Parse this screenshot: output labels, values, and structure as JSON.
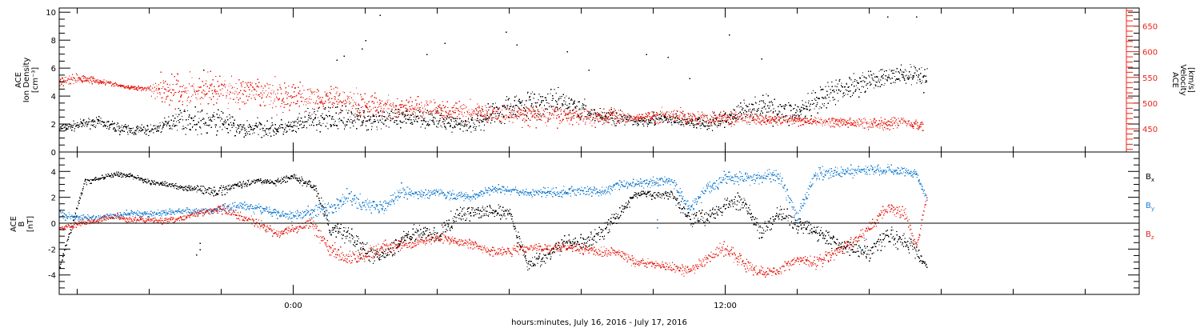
{
  "figure": {
    "xlabel": "hours:minutes, July 16, 2016 - July 17, 2016",
    "time_tick_labels": [
      {
        "hour": 0,
        "label": "0:00"
      },
      {
        "hour": 12,
        "label": "12:00"
      }
    ],
    "time_range_hours": [
      -6.5,
      23.5
    ]
  },
  "colors": {
    "black": "#000000",
    "red": "#e8241a",
    "blue": "#1b7fd1"
  },
  "chart_data": [
    {
      "type": "scatter",
      "panel": "top",
      "left_axis": {
        "label_lines": [
          "ACE",
          "Ion Density",
          "[cm⁻³]"
        ],
        "ylim": [
          0,
          10.3
        ],
        "ticks": [
          0,
          2,
          4,
          6,
          8,
          10
        ]
      },
      "right_axis": {
        "label_lines": [
          "ACE",
          "Velocity",
          "[km/s]"
        ],
        "ylim": [
          405,
          685
        ],
        "ticks": [
          450,
          500,
          550,
          600,
          650
        ]
      },
      "series": [
        {
          "key": "density",
          "axis": "left",
          "color": "#000000",
          "x": [
            -6.5,
            -5.5,
            -4.6,
            -4.0,
            -3.6,
            -3.2,
            -2.5,
            -2.0,
            -1.5,
            -1.0,
            -0.5,
            0.0,
            0.5,
            1.0,
            1.5,
            2.0,
            2.5,
            3.0,
            3.5,
            4.0,
            4.5,
            5.0,
            5.5,
            6.0,
            6.5,
            7.0,
            7.5,
            8.0,
            8.5,
            9.0,
            9.5,
            10.0,
            10.5,
            11.0,
            11.5,
            12.0,
            12.5,
            13.0,
            13.5,
            14.0,
            14.5,
            15.0,
            15.5,
            16.0,
            16.4,
            16.8,
            17.2,
            17.6
          ],
          "y": [
            1.7,
            2.2,
            1.6,
            1.6,
            1.9,
            2.5,
            2.1,
            2.3,
            1.6,
            1.8,
            1.7,
            1.8,
            2.4,
            2.3,
            2.6,
            2.3,
            2.5,
            2.3,
            2.6,
            2.3,
            2.1,
            2.0,
            2.8,
            3.2,
            3.5,
            3.3,
            3.6,
            3.0,
            2.6,
            2.5,
            2.2,
            2.4,
            2.3,
            2.2,
            2.0,
            2.4,
            3.0,
            3.3,
            2.9,
            2.9,
            3.4,
            4.3,
            4.8,
            5.2,
            5.3,
            5.6,
            5.5,
            5.4
          ],
          "jitter": [
            0.25,
            0.3,
            0.35,
            0.3,
            0.4,
            0.7,
            0.8,
            0.7,
            0.6,
            0.5,
            0.5,
            0.5,
            0.7,
            0.9,
            0.7,
            0.6,
            0.7,
            0.6,
            0.6,
            0.6,
            0.5,
            0.5,
            0.8,
            0.9,
            0.8,
            0.9,
            0.7,
            0.6,
            0.5,
            0.5,
            0.3,
            0.4,
            0.4,
            0.4,
            0.4,
            0.5,
            0.7,
            0.8,
            0.7,
            0.8,
            0.8,
            0.8,
            0.7,
            0.6,
            0.6,
            0.6,
            0.6,
            0.6
          ],
          "outliers": [
            [
              1.2,
              6.6
            ],
            [
              1.4,
              6.9
            ],
            [
              1.9,
              7.4
            ],
            [
              2.0,
              8.0
            ],
            [
              2.4,
              9.8
            ],
            [
              3.7,
              7.0
            ],
            [
              4.2,
              7.8
            ],
            [
              5.9,
              8.6
            ],
            [
              6.2,
              7.7
            ],
            [
              7.6,
              7.2
            ],
            [
              8.2,
              5.9
            ],
            [
              9.8,
              7.0
            ],
            [
              10.4,
              6.8
            ],
            [
              11.0,
              5.3
            ],
            [
              12.1,
              8.4
            ],
            [
              13.0,
              6.7
            ],
            [
              16.5,
              9.7
            ],
            [
              17.3,
              9.7
            ],
            [
              17.5,
              4.3
            ],
            [
              -2.5,
              5.9
            ]
          ]
        },
        {
          "key": "velocity",
          "axis": "right",
          "color": "#e8241a",
          "x": [
            -6.5,
            -5.8,
            -5.2,
            -4.6,
            -4.1,
            -3.6,
            -3.0,
            -2.5,
            -2.0,
            -1.5,
            -1.0,
            -0.5,
            0.0,
            0.5,
            1.0,
            1.5,
            2.0,
            2.5,
            3.0,
            3.5,
            4.0,
            4.5,
            5.0,
            5.5,
            6.0,
            6.5,
            7.0,
            7.5,
            8.0,
            8.5,
            9.0,
            9.5,
            10.0,
            10.5,
            11.0,
            11.5,
            12.0,
            12.5,
            13.0,
            13.5,
            14.0,
            14.5,
            15.0,
            15.5,
            16.0,
            16.5,
            17.0,
            17.5
          ],
          "y": [
            545,
            549,
            541,
            531,
            530,
            528,
            523,
            527,
            526,
            521,
            519,
            514,
            513,
            512,
            513,
            505,
            496,
            494,
            491,
            491,
            488,
            485,
            484,
            481,
            478,
            478,
            477,
            476,
            477,
            475,
            474,
            472,
            476,
            476,
            474,
            473,
            472,
            474,
            471,
            468,
            466,
            465,
            464,
            462,
            462,
            462,
            466,
            454
          ],
          "jitter": [
            12,
            6,
            4,
            3,
            4,
            28,
            28,
            28,
            28,
            26,
            24,
            26,
            24,
            24,
            22,
            22,
            22,
            18,
            16,
            18,
            16,
            16,
            16,
            14,
            14,
            16,
            16,
            16,
            16,
            15,
            14,
            4,
            12,
            12,
            12,
            12,
            12,
            10,
            10,
            8,
            8,
            7,
            8,
            8,
            10,
            10,
            8,
            10
          ],
          "outliers": []
        }
      ]
    },
    {
      "type": "scatter",
      "panel": "bottom",
      "left_axis": {
        "label_lines": [
          "ACE",
          "B",
          "[nT]"
        ],
        "ylim": [
          -5.5,
          5.5
        ],
        "ticks": [
          -4,
          -2,
          0,
          2,
          4
        ]
      },
      "zero_line": true,
      "series": [
        {
          "key": "bx",
          "name": "Bx",
          "color": "#000000",
          "x": [
            -6.5,
            -5.8,
            -5.0,
            -4.5,
            -4.0,
            -3.5,
            -2.8,
            -2.2,
            -1.6,
            -1.0,
            -0.5,
            0.0,
            0.6,
            1.0,
            1.5,
            2.0,
            2.5,
            3.0,
            3.5,
            4.0,
            4.5,
            5.0,
            5.5,
            6.0,
            6.5,
            7.0,
            7.5,
            8.0,
            8.5,
            9.0,
            9.5,
            10.0,
            10.5,
            11.0,
            11.5,
            12.0,
            12.5,
            13.0,
            13.5,
            14.0,
            14.5,
            15.0,
            15.5,
            16.0,
            16.5,
            17.0,
            17.3,
            17.6
          ],
          "y": [
            -3.4,
            3.2,
            3.8,
            3.7,
            3.2,
            3.0,
            2.7,
            2.4,
            3.0,
            3.3,
            3.2,
            3.6,
            2.8,
            -0.4,
            -0.8,
            -2.2,
            -2.6,
            -1.3,
            -0.5,
            -1.1,
            0.6,
            0.9,
            0.9,
            0.8,
            -3.2,
            -2.5,
            -1.6,
            -1.5,
            -0.9,
            0.6,
            2.3,
            2.2,
            2.3,
            0.5,
            0.5,
            1.5,
            1.6,
            -0.7,
            0.8,
            -0.1,
            -0.4,
            -1.4,
            -1.9,
            -2.2,
            -0.9,
            -1.4,
            -2.1,
            -3.5
          ],
          "jitter": [
            0.3,
            0.2,
            0.15,
            0.15,
            0.15,
            0.15,
            0.2,
            0.4,
            0.2,
            0.2,
            0.2,
            0.2,
            0.3,
            0.5,
            0.6,
            0.6,
            0.5,
            0.5,
            0.5,
            0.5,
            0.5,
            0.5,
            0.4,
            0.4,
            0.4,
            0.5,
            0.5,
            0.5,
            0.5,
            0.4,
            0.3,
            0.3,
            0.3,
            0.5,
            0.5,
            0.5,
            0.5,
            0.6,
            0.6,
            0.6,
            0.6,
            0.6,
            0.5,
            0.5,
            0.6,
            0.6,
            0.5,
            0.3
          ],
          "outliers": [
            [
              -2.7,
              -2.4
            ],
            [
              -2.6,
              -2.0
            ],
            [
              -2.6,
              -1.5
            ]
          ]
        },
        {
          "key": "by",
          "name": "By",
          "color": "#1b7fd1",
          "x": [
            -6.5,
            -6.0,
            -5.5,
            -5.0,
            -4.5,
            -4.0,
            -3.5,
            -3.0,
            -2.5,
            -2.0,
            -1.5,
            -1.0,
            -0.5,
            0.0,
            0.5,
            1.0,
            1.5,
            2.0,
            2.5,
            3.0,
            3.5,
            4.0,
            4.5,
            5.0,
            5.5,
            6.0,
            6.5,
            7.0,
            7.5,
            8.0,
            8.5,
            9.0,
            9.5,
            10.0,
            10.5,
            11.0,
            11.5,
            12.0,
            12.5,
            13.0,
            13.5,
            14.0,
            14.5,
            15.0,
            15.5,
            16.0,
            16.5,
            17.0,
            17.3,
            17.6
          ],
          "y": [
            0.7,
            0.5,
            0.4,
            0.6,
            0.8,
            0.7,
            0.9,
            1.0,
            0.9,
            1.2,
            1.4,
            1.2,
            0.8,
            0.6,
            0.9,
            1.2,
            2.1,
            1.5,
            1.3,
            2.6,
            2.2,
            2.5,
            2.1,
            2.1,
            2.7,
            2.6,
            2.3,
            2.4,
            2.4,
            2.6,
            2.4,
            3.0,
            3.1,
            3.2,
            3.4,
            1.1,
            2.8,
            3.5,
            3.5,
            3.6,
            3.7,
            0.4,
            3.9,
            3.9,
            4.0,
            4.1,
            4.2,
            4.0,
            3.9,
            1.8
          ],
          "jitter": [
            0.3,
            0.2,
            0.2,
            0.2,
            0.2,
            0.2,
            0.2,
            0.2,
            0.2,
            0.3,
            0.3,
            0.3,
            0.3,
            0.3,
            0.4,
            0.5,
            0.5,
            0.5,
            0.4,
            0.4,
            0.3,
            0.3,
            0.3,
            0.3,
            0.3,
            0.3,
            0.3,
            0.3,
            0.3,
            0.3,
            0.3,
            0.3,
            0.3,
            0.3,
            0.3,
            0.4,
            0.4,
            0.4,
            0.4,
            0.4,
            0.5,
            0.5,
            0.4,
            0.4,
            0.4,
            0.4,
            0.3,
            0.3,
            0.3,
            0.4
          ],
          "outliers": [
            [
              10.1,
              -0.3
            ],
            [
              10.1,
              0.3
            ],
            [
              15.8,
              -2.0
            ],
            [
              15.9,
              -1.2
            ]
          ]
        },
        {
          "key": "bz",
          "name": "Bz",
          "color": "#e8241a",
          "x": [
            -6.5,
            -6.0,
            -5.5,
            -5.0,
            -4.5,
            -4.0,
            -3.5,
            -3.0,
            -2.5,
            -2.0,
            -1.5,
            -1.0,
            -0.5,
            0.0,
            0.5,
            1.0,
            1.5,
            2.0,
            2.5,
            3.0,
            3.5,
            4.0,
            4.5,
            5.0,
            5.5,
            6.0,
            6.5,
            7.0,
            7.5,
            8.0,
            8.5,
            9.0,
            9.5,
            10.0,
            10.5,
            11.0,
            11.5,
            12.0,
            12.5,
            13.0,
            13.5,
            14.0,
            14.5,
            15.0,
            15.5,
            16.0,
            16.5,
            17.0,
            17.3,
            17.6
          ],
          "y": [
            -0.4,
            0.0,
            0.2,
            0.6,
            0.3,
            0.3,
            0.2,
            0.5,
            0.9,
            1.1,
            0.6,
            0.0,
            -0.7,
            -0.5,
            0.1,
            -1.9,
            -2.7,
            -2.4,
            -1.8,
            -1.7,
            -1.4,
            -1.1,
            -1.3,
            -1.6,
            -2.2,
            -2.1,
            -1.8,
            -1.9,
            -1.8,
            -2.0,
            -2.2,
            -2.2,
            -3.0,
            -3.1,
            -3.4,
            -3.7,
            -2.7,
            -1.8,
            -3.1,
            -3.8,
            -3.5,
            -2.8,
            -3.0,
            -2.3,
            -1.6,
            -0.4,
            1.3,
            0.7,
            -1.7,
            2.2
          ],
          "jitter": [
            0.2,
            0.2,
            0.2,
            0.2,
            0.2,
            0.2,
            0.2,
            0.2,
            0.2,
            0.3,
            0.3,
            0.3,
            0.3,
            0.3,
            0.4,
            0.5,
            0.5,
            0.5,
            0.4,
            0.4,
            0.3,
            0.3,
            0.3,
            0.3,
            0.3,
            0.3,
            0.3,
            0.3,
            0.3,
            0.3,
            0.3,
            0.3,
            0.3,
            0.3,
            0.3,
            0.3,
            0.4,
            0.4,
            0.4,
            0.4,
            0.4,
            0.4,
            0.4,
            0.4,
            0.4,
            0.4,
            0.4,
            0.4,
            0.3,
            0.3
          ],
          "outliers": []
        }
      ],
      "legend": [
        {
          "base": "B",
          "sub": "x",
          "color": "#000000"
        },
        {
          "base": "B",
          "sub": "y",
          "color": "#1b7fd1"
        },
        {
          "base": "B",
          "sub": "z",
          "color": "#e8241a"
        }
      ]
    }
  ]
}
